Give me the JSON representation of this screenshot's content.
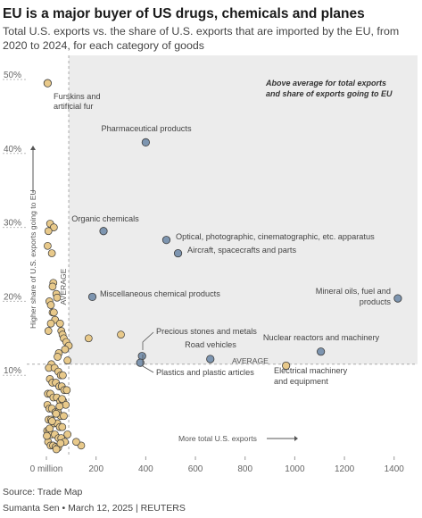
{
  "header": {
    "title": "EU is a major buyer of US drugs, chemicals and planes",
    "subtitle": "Total U.S. exports vs. the share of U.S. exports that are imported by the EU, from 2020 to 2024, for each category of goods"
  },
  "footer": {
    "source": "Source: Trade Map",
    "byline": "Sumanta Sen • March 12, 2025 | REUTERS"
  },
  "colors": {
    "labeled_point": "#7d95b0",
    "other_point": "#e8c98a",
    "point_stroke": "#3a3a3a",
    "highlight_region": "#ececec"
  },
  "chart_data": {
    "type": "scatter",
    "title": "EU is a major buyer of US drugs, chemicals and planes",
    "subtitle": "Total U.S. exports vs. the share of U.S. exports that are imported by the EU, from 2020 to 2024, for each category of goods",
    "xlabel": "More total U.S. exports",
    "ylabel": "Higher share of U.S. exports going to EU",
    "xlim": [
      -30,
      1460
    ],
    "ylim": [
      -2,
      52
    ],
    "x_ticks": [
      0,
      200,
      400,
      600,
      800,
      1000,
      1200,
      1400
    ],
    "x_tick_labels": [
      "0 million",
      "200",
      "400",
      "600",
      "800",
      "1000",
      "1200",
      "1400"
    ],
    "y_ticks": [
      10,
      20,
      30,
      40,
      50
    ],
    "y_tick_labels": [
      "10%",
      "20%",
      "30%",
      "40%",
      "50%"
    ],
    "grid": false,
    "average": {
      "x": 90,
      "y": 11.5,
      "x_label": "AVERAGE",
      "y_label": "AVERAGE"
    },
    "region_note": "Above average for total exports and share of exports going to EU",
    "region_note_lines": [
      "Above average for total exports",
      "and share of exports going to EU"
    ],
    "labeled_points": [
      {
        "name": "Furskins and artificial fur",
        "lines": [
          "Furskins and",
          "artificial fur"
        ],
        "x": 5,
        "y": 49.5,
        "color": "#e8c98a"
      },
      {
        "name": "Pharmaceutical products",
        "lines": [
          "Pharmaceutical products"
        ],
        "x": 400,
        "y": 41.5,
        "color": "#7d95b0"
      },
      {
        "name": "Organic chemicals",
        "lines": [
          "Organic chemicals"
        ],
        "x": 230,
        "y": 29.5,
        "color": "#7d95b0"
      },
      {
        "name": "Optical, photographic, cinematographic, etc. apparatus",
        "lines": [
          "Optical, photographic, cinematographic, etc. apparatus"
        ],
        "x": 483,
        "y": 28.3,
        "color": "#7d95b0"
      },
      {
        "name": "Aircraft, spacecrafts and parts",
        "lines": [
          "Aircraft, spacecrafts and parts"
        ],
        "x": 530,
        "y": 26.5,
        "color": "#7d95b0"
      },
      {
        "name": "Miscellaneous chemical products",
        "lines": [
          "Miscellaneous chemical products"
        ],
        "x": 185,
        "y": 20.6,
        "color": "#7d95b0"
      },
      {
        "name": "Mineral oils, fuel and products",
        "lines": [
          "Mineral oils, fuel and",
          "products"
        ],
        "x": 1415,
        "y": 20.4,
        "color": "#7d95b0"
      },
      {
        "name": "Precious stones and metals",
        "lines": [
          "Precious stones and metals"
        ],
        "x": 385,
        "y": 12.6,
        "color": "#7d95b0"
      },
      {
        "name": "Plastics and plastic articles",
        "lines": [
          "Plastics and plastic articles"
        ],
        "x": 378,
        "y": 11.7,
        "color": "#7d95b0"
      },
      {
        "name": "Road vehicles",
        "lines": [
          "Road vehicles"
        ],
        "x": 660,
        "y": 12.2,
        "color": "#7d95b0"
      },
      {
        "name": "Nuclear reactors and machinery",
        "lines": [
          "Nuclear reactors and machinery"
        ],
        "x": 1105,
        "y": 13.2,
        "color": "#7d95b0"
      },
      {
        "name": "Electrical machinery and equipment",
        "lines": [
          "Electrical machinery",
          "and equipment"
        ],
        "x": 965,
        "y": 11.3,
        "color": "#e8c98a"
      }
    ],
    "other_points": {
      "color": "#e8c98a",
      "x": [
        15,
        30,
        8,
        5,
        22,
        28,
        40,
        12,
        18,
        25,
        35,
        55,
        60,
        65,
        70,
        80,
        90,
        75,
        50,
        45,
        85,
        170,
        300,
        20,
        10,
        33,
        48,
        58,
        66,
        14,
        24,
        38,
        52,
        62,
        72,
        82,
        6,
        16,
        28,
        42,
        56,
        68,
        78,
        4,
        12,
        22,
        36,
        46,
        58,
        70,
        9,
        19,
        31,
        44,
        54,
        64,
        3,
        11,
        21,
        34,
        49,
        60,
        74,
        7,
        17,
        27,
        37,
        47,
        57,
        2,
        13,
        23,
        39,
        53,
        63,
        8,
        18,
        30,
        43,
        25,
        40,
        140,
        120,
        85
      ],
      "y": [
        30.5,
        30.0,
        29.5,
        27.5,
        26.5,
        22.5,
        21.0,
        20.0,
        19.5,
        18.5,
        17.5,
        17.0,
        16.0,
        15.5,
        15.0,
        14.5,
        14.0,
        13.5,
        13.0,
        12.5,
        12.0,
        15.0,
        15.5,
        11.5,
        11.0,
        11.0,
        10.5,
        10.0,
        10.0,
        9.5,
        9.0,
        9.0,
        8.5,
        8.5,
        8.0,
        8.0,
        7.5,
        7.5,
        7.0,
        7.0,
        6.5,
        6.5,
        6.0,
        6.0,
        5.5,
        5.5,
        5.0,
        5.0,
        4.5,
        4.5,
        4.0,
        4.0,
        3.5,
        3.5,
        3.0,
        3.0,
        2.5,
        2.5,
        2.0,
        2.0,
        1.5,
        1.5,
        1.0,
        1.0,
        0.5,
        0.5,
        0.3,
        0.2,
        0.8,
        1.8,
        2.8,
        3.8,
        4.8,
        5.8,
        6.8,
        16.0,
        17.0,
        18.5,
        20.5,
        22.0,
        0.0,
        0.5,
        1.0,
        2.0
      ]
    }
  }
}
